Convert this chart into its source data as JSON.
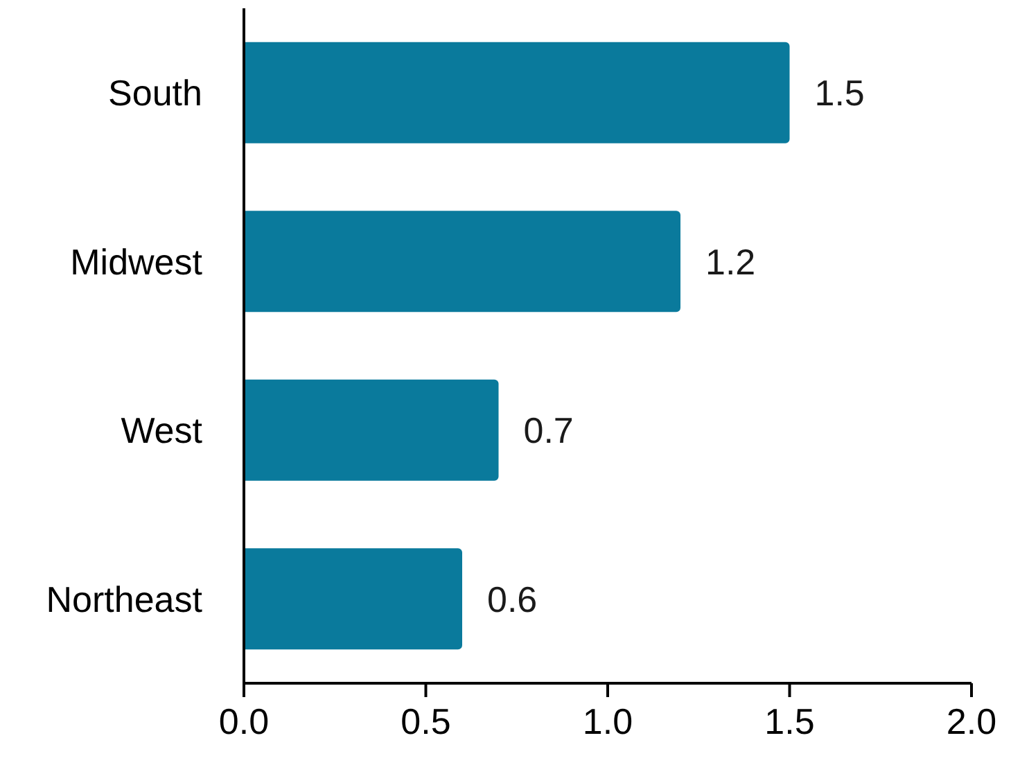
{
  "chart_data": {
    "type": "bar",
    "orientation": "horizontal",
    "categories": [
      "South",
      "Midwest",
      "West",
      "Northeast"
    ],
    "values": [
      1.5,
      1.2,
      0.7,
      0.6
    ],
    "color": "#0a7a9c",
    "data_labels": true,
    "xlim": [
      0,
      2
    ],
    "xticks": [
      {
        "value": 0,
        "label": "0.0"
      },
      {
        "value": 0.5,
        "label": "0.5"
      },
      {
        "value": 1,
        "label": "1.0"
      },
      {
        "value": 1.5,
        "label": "1.5"
      },
      {
        "value": 2,
        "label": "2.0"
      }
    ]
  }
}
